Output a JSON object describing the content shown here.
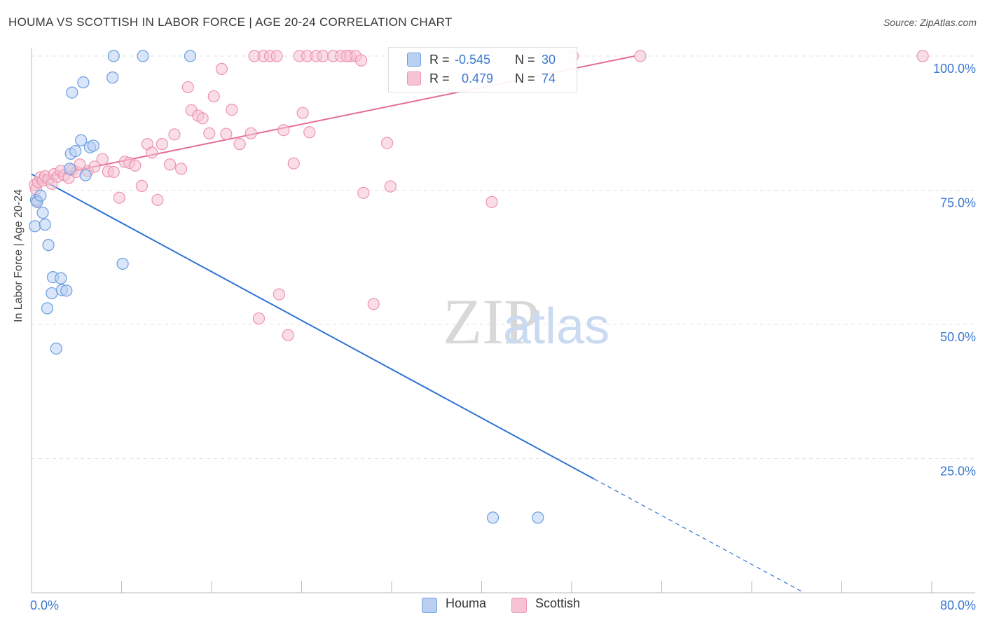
{
  "title": "HOUMA VS SCOTTISH IN LABOR FORCE | AGE 20-24 CORRELATION CHART",
  "source": "Source: ZipAtlas.com",
  "watermark": {
    "zip": "ZIP",
    "atlas": "atlas"
  },
  "legend_labels": {
    "r": "R =",
    "n": "N ="
  },
  "chart_data": {
    "type": "scatter",
    "title": "HOUMA VS SCOTTISH IN LABOR FORCE | AGE 20-24 CORRELATION CHART",
    "xlabel": "",
    "ylabel": "In Labor Force | Age 20-24",
    "xlim": [
      0,
      80
    ],
    "ylim": [
      0,
      100
    ],
    "x_tick_labels": [
      "0.0%",
      "80.0%"
    ],
    "y_ticks": [
      25,
      50,
      75,
      100
    ],
    "y_tick_labels": [
      "25.0%",
      "50.0%",
      "75.0%",
      "100.0%"
    ],
    "series": [
      {
        "name": "Houma",
        "color": "#6a9ee0",
        "fill": "#b9d0f2",
        "line_color": "#2f73d4",
        "r": "-0.545",
        "n": "30",
        "points": [
          [
            0.3,
            68.3
          ],
          [
            0.4,
            73.2
          ],
          [
            0.5,
            72.8
          ],
          [
            0.8,
            74.0
          ],
          [
            1.0,
            70.8
          ],
          [
            1.2,
            68.6
          ],
          [
            1.4,
            53.0
          ],
          [
            1.5,
            64.8
          ],
          [
            1.8,
            55.8
          ],
          [
            1.9,
            58.8
          ],
          [
            2.2,
            45.5
          ],
          [
            2.6,
            58.6
          ],
          [
            2.7,
            56.4
          ],
          [
            3.1,
            56.3
          ],
          [
            3.4,
            79.0
          ],
          [
            3.5,
            81.8
          ],
          [
            3.6,
            93.2
          ],
          [
            3.9,
            82.3
          ],
          [
            4.4,
            84.3
          ],
          [
            4.6,
            95.1
          ],
          [
            4.8,
            77.8
          ],
          [
            5.2,
            83.0
          ],
          [
            5.5,
            83.3
          ],
          [
            7.2,
            96.0
          ],
          [
            7.3,
            100.0
          ],
          [
            8.1,
            61.3
          ],
          [
            9.9,
            100.0
          ],
          [
            14.1,
            100.0
          ],
          [
            41.0,
            14.0
          ],
          [
            45.0,
            14.0
          ]
        ],
        "trend": {
          "x0": 0,
          "y0": 78.0,
          "x1": 50.0,
          "y1": 21.2,
          "x_dash_end": 68.5
        }
      },
      {
        "name": "Scottish",
        "color": "#ef93b0",
        "fill": "#f6c3d4",
        "line_color": "#e46c95",
        "r": "0.479",
        "n": "74",
        "points": [
          [
            0.3,
            76.0
          ],
          [
            0.4,
            75.2
          ],
          [
            0.5,
            73.0
          ],
          [
            0.6,
            76.5
          ],
          [
            0.8,
            77.4
          ],
          [
            1.0,
            76.8
          ],
          [
            1.2,
            77.6
          ],
          [
            1.5,
            77.0
          ],
          [
            1.8,
            76.2
          ],
          [
            2.0,
            78.0
          ],
          [
            2.3,
            77.5
          ],
          [
            2.6,
            78.6
          ],
          [
            2.9,
            77.8
          ],
          [
            3.3,
            77.3
          ],
          [
            3.6,
            78.8
          ],
          [
            4.0,
            78.4
          ],
          [
            4.3,
            79.8
          ],
          [
            5.0,
            78.6
          ],
          [
            5.6,
            79.4
          ],
          [
            6.3,
            80.8
          ],
          [
            6.8,
            78.5
          ],
          [
            7.3,
            78.4
          ],
          [
            7.8,
            73.6
          ],
          [
            8.3,
            80.3
          ],
          [
            8.7,
            80.1
          ],
          [
            9.2,
            79.6
          ],
          [
            9.8,
            75.8
          ],
          [
            10.3,
            83.6
          ],
          [
            10.7,
            82.0
          ],
          [
            11.2,
            73.2
          ],
          [
            11.6,
            83.6
          ],
          [
            12.3,
            79.8
          ],
          [
            12.7,
            85.4
          ],
          [
            13.3,
            79.0
          ],
          [
            13.9,
            94.2
          ],
          [
            14.2,
            89.9
          ],
          [
            14.8,
            88.9
          ],
          [
            15.2,
            88.4
          ],
          [
            15.8,
            85.6
          ],
          [
            16.2,
            92.5
          ],
          [
            16.9,
            97.6
          ],
          [
            17.3,
            85.5
          ],
          [
            17.8,
            90.0
          ],
          [
            18.5,
            83.6
          ],
          [
            19.5,
            85.6
          ],
          [
            20.2,
            51.1
          ],
          [
            20.6,
            100.0
          ],
          [
            21.2,
            100.0
          ],
          [
            21.8,
            100.0
          ],
          [
            22.0,
            55.6
          ],
          [
            22.4,
            86.2
          ],
          [
            22.8,
            48.0
          ],
          [
            23.3,
            80.0
          ],
          [
            23.8,
            100.0
          ],
          [
            24.1,
            89.4
          ],
          [
            24.5,
            100.0
          ],
          [
            24.7,
            85.8
          ],
          [
            25.3,
            100.0
          ],
          [
            25.9,
            100.0
          ],
          [
            26.8,
            100.0
          ],
          [
            27.5,
            100.0
          ],
          [
            28.3,
            100.0
          ],
          [
            28.8,
            100.0
          ],
          [
            29.3,
            99.2
          ],
          [
            29.5,
            74.5
          ],
          [
            30.4,
            53.8
          ],
          [
            31.6,
            83.8
          ],
          [
            31.9,
            75.7
          ],
          [
            40.9,
            72.8
          ],
          [
            48.1,
            100.0
          ],
          [
            54.1,
            100.0
          ],
          [
            79.2,
            100.0
          ],
          [
            19.8,
            100.0
          ],
          [
            28.0,
            100.0
          ]
        ],
        "trend": {
          "x0": 0.5,
          "y0": 77.2,
          "x1": 53.6,
          "y1": 100.0
        }
      }
    ]
  }
}
